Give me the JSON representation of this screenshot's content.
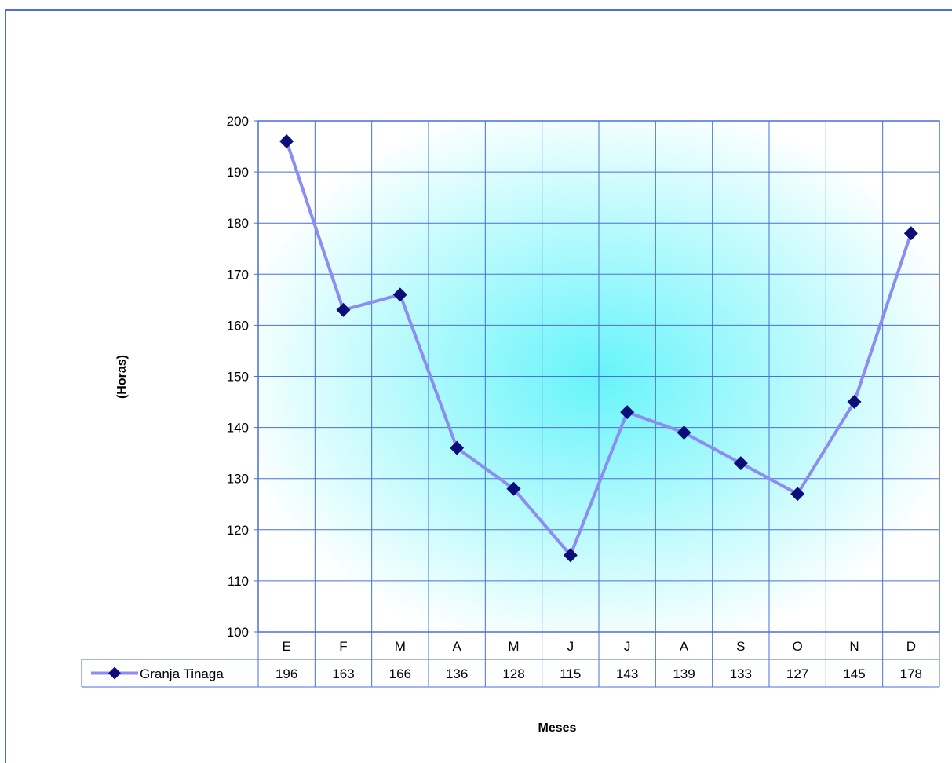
{
  "chart_data": {
    "type": "line",
    "categories": [
      "E",
      "F",
      "M",
      "A",
      "M",
      "J",
      "J",
      "A",
      "S",
      "O",
      "N",
      "D"
    ],
    "series": [
      {
        "name": "Granja Tinaga",
        "values": [
          196,
          163,
          166,
          136,
          128,
          115,
          143,
          139,
          133,
          127,
          145,
          178
        ]
      }
    ],
    "ylim": [
      100,
      200
    ],
    "yticks": [
      100,
      110,
      120,
      130,
      140,
      150,
      160,
      170,
      180,
      190,
      200
    ],
    "ylabel": "(Horas)",
    "xlabel": "Meses",
    "grid": true,
    "legend": "data-table-bottom-left",
    "colors": {
      "line": "#8c8cf2",
      "marker": "#0d0d7a",
      "grid": "#4a6fd8",
      "background_center": "#66f4fa",
      "background_edge": "#ffffff"
    }
  }
}
